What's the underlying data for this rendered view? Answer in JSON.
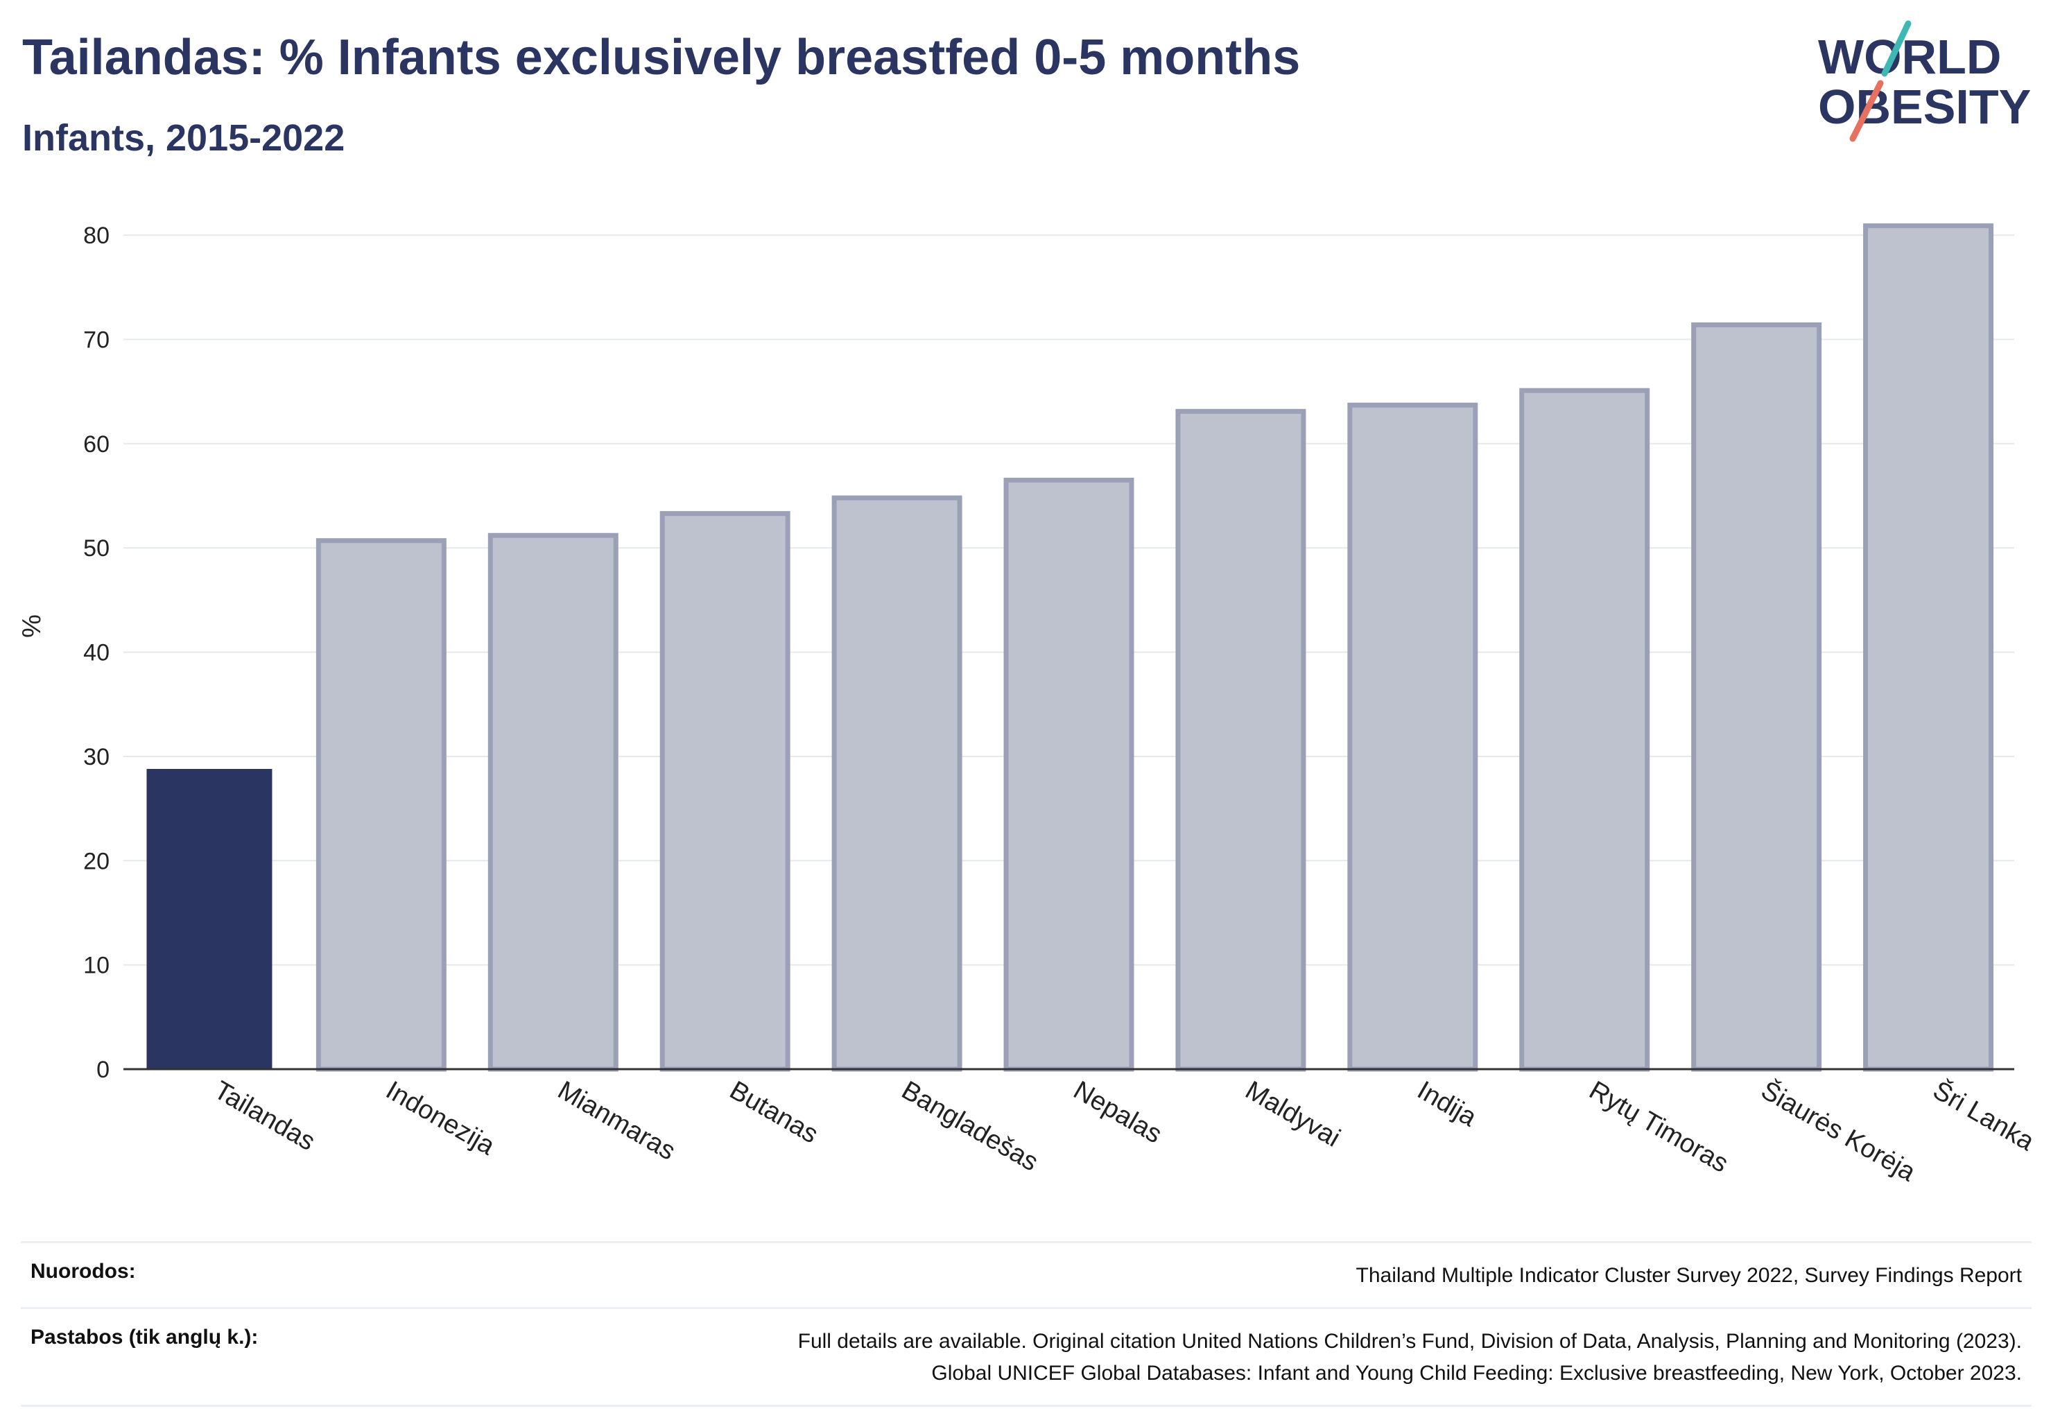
{
  "header": {
    "title": "Tailandas: % Infants exclusively breastfed 0-5 months",
    "subtitle": "Infants, 2015-2022"
  },
  "logo": {
    "line1": "WORLD",
    "line2": "OBESITY",
    "icon": "slash-stroke-logo"
  },
  "chart_data": {
    "type": "bar",
    "title": "Tailandas: % Infants exclusively breastfed 0-5 months",
    "subtitle": "Infants, 2015-2022",
    "ylabel": "%",
    "xlabel": "",
    "ylim": [
      0,
      85
    ],
    "yticks": [
      0,
      10,
      20,
      30,
      40,
      50,
      60,
      70,
      80
    ],
    "grid": true,
    "categories": [
      "Tailandas",
      "Indonezija",
      "Mianmaras",
      "Butanas",
      "Bangladešas",
      "Nepalas",
      "Maldyvai",
      "Indija",
      "Rytų Timoras",
      "Šiaurės Korėja",
      "Šri Lanka"
    ],
    "values": [
      28.8,
      50.7,
      51.2,
      53.3,
      54.8,
      56.5,
      63.1,
      63.7,
      65.1,
      71.4,
      80.9
    ],
    "highlight_index": 0,
    "colors": {
      "highlight": "#2b3561",
      "other_fill": "#bec1ce",
      "other_stroke": "#9aa0b6"
    }
  },
  "footer": {
    "sources_label": "Nuorodos:",
    "sources_text": "Thailand Multiple Indicator Cluster Survey 2022, Survey Findings Report",
    "notes_label": "Pastabos (tik anglų k.):",
    "notes_line1": "Full details are available. Original citation United Nations Children’s Fund, Division of Data, Analysis, Planning and Monitoring (2023).",
    "notes_line2": "Global UNICEF Global Databases: Infant and Young Child Feeding: Exclusive breastfeeding, New York, October 2023."
  }
}
